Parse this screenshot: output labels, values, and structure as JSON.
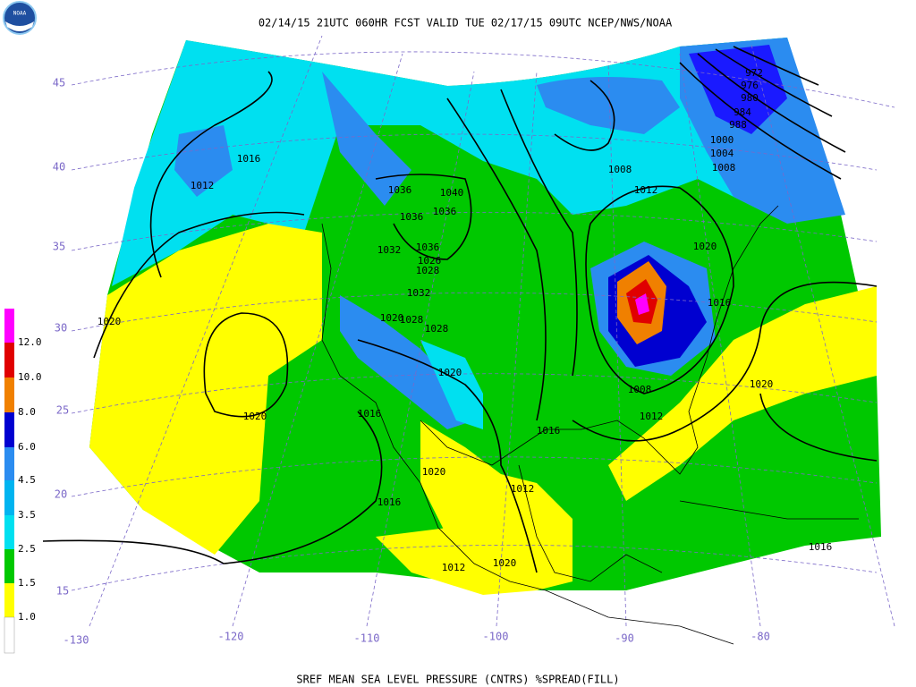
{
  "header": {
    "title": "02/14/15 21UTC  060HR  FCST VALID TUE 02/17/15 09UTC  NCEP/NWS/NOAA",
    "logo": "NOAA"
  },
  "footer": {
    "caption": "SREF MEAN SEA LEVEL PRESSURE (CNTRS) %SPREAD(FILL)"
  },
  "colorbar": {
    "labels": [
      "12.0",
      "10.0",
      "8.0",
      "6.0",
      "4.5",
      "3.5",
      "2.5",
      "1.5",
      "1.0"
    ]
  },
  "latitude_labels": [
    "45",
    "40",
    "35",
    "30",
    "25",
    "20",
    "15"
  ],
  "longitude_labels": [
    "-130",
    "-120",
    "-110",
    "-100",
    "-90",
    "-80"
  ],
  "contour_labels": [
    "1016",
    "1012",
    "1020",
    "1020",
    "1036",
    "1040",
    "1036",
    "1036",
    "1032",
    "1036",
    "1026",
    "1028",
    "1032",
    "1020",
    "1028",
    "1028",
    "1020",
    "1016",
    "1020",
    "1016",
    "1012",
    "1016",
    "1012",
    "1020",
    "1008",
    "1012",
    "1020",
    "1016",
    "1008",
    "1012",
    "1020",
    "1016",
    "972",
    "976",
    "980",
    "984",
    "988",
    "1000",
    "1004",
    "1008"
  ]
}
